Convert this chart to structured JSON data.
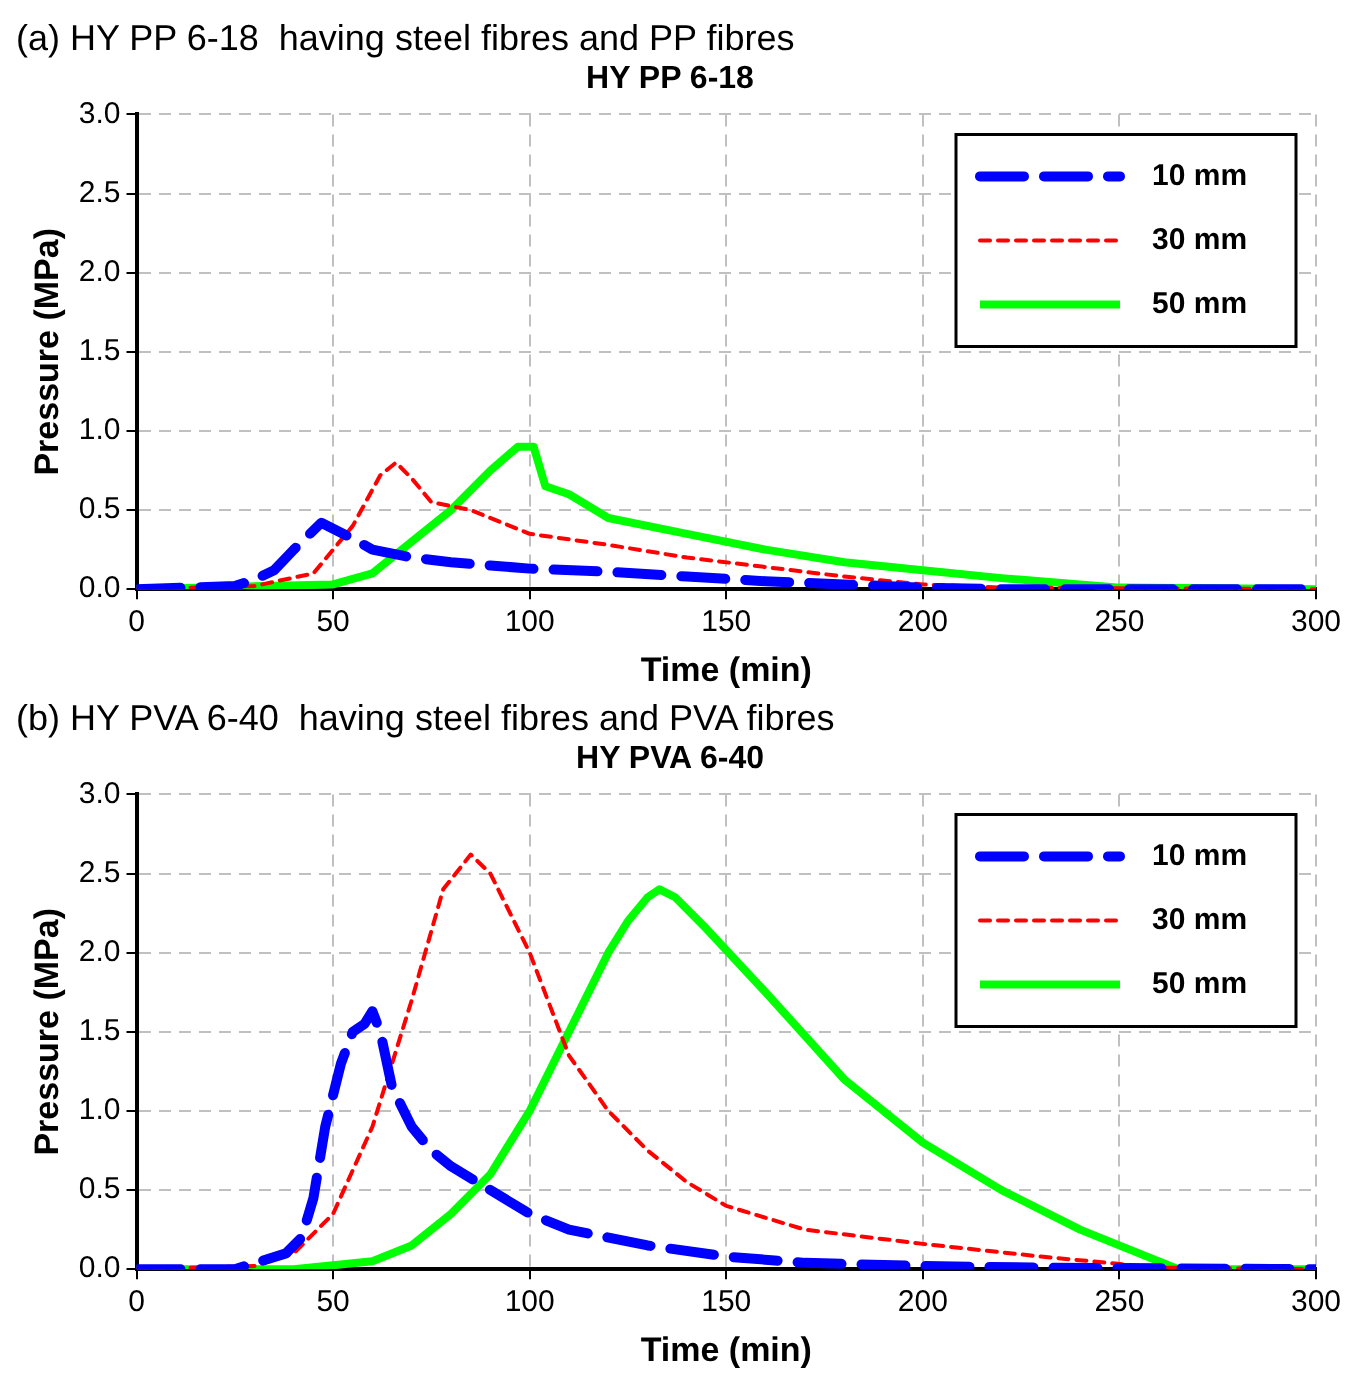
{
  "chart_data": [
    {
      "type": "line",
      "annotations": [
        "(a) HY PP 6-18  having steel fibres and PP fibres"
      ],
      "title": "HY PP 6-18",
      "xlabel": "Time (min)",
      "ylabel": "Pressure (MPa)",
      "xlim": [
        0,
        300
      ],
      "xticks": [
        0,
        50,
        100,
        150,
        200,
        250,
        300
      ],
      "ylim": [
        0,
        3
      ],
      "yticks": [
        {
          "value": 0,
          "label": "0.0"
        },
        {
          "value": 0.5,
          "label": "0.5"
        },
        {
          "value": 1,
          "label": "1.0"
        },
        {
          "value": 1.5,
          "label": "1.5"
        },
        {
          "value": 2,
          "label": "2.0"
        },
        {
          "value": 2.5,
          "label": "2.5"
        },
        {
          "value": 3,
          "label": "3.0"
        }
      ],
      "grid": true,
      "legend": "top right",
      "series": [
        {
          "name": "10 mm",
          "color": "#0000ff",
          "line_style": "dashed",
          "x": [
            0,
            25,
            30,
            35,
            40,
            47,
            55,
            60,
            70,
            80,
            90,
            100,
            120,
            140,
            160,
            180,
            200,
            220,
            300
          ],
          "values": [
            0,
            0.02,
            0.06,
            0.12,
            0.25,
            0.42,
            0.32,
            0.25,
            0.2,
            0.17,
            0.15,
            0.13,
            0.11,
            0.08,
            0.05,
            0.03,
            0.01,
            0,
            0
          ]
        },
        {
          "name": "30 mm",
          "color": "#ff0000",
          "line_style": "dotted",
          "x": [
            0,
            30,
            45,
            55,
            62,
            66,
            70,
            75,
            85,
            100,
            120,
            140,
            160,
            180,
            200,
            220,
            300
          ],
          "values": [
            0,
            0.02,
            0.1,
            0.4,
            0.72,
            0.8,
            0.7,
            0.55,
            0.5,
            0.35,
            0.28,
            0.2,
            0.14,
            0.08,
            0.03,
            0.01,
            0
          ]
        },
        {
          "name": "50 mm",
          "color": "#00ff00",
          "line_style": "solid",
          "x": [
            0,
            50,
            60,
            70,
            80,
            90,
            97,
            101,
            104,
            110,
            120,
            140,
            160,
            180,
            200,
            220,
            250,
            300
          ],
          "values": [
            0,
            0.03,
            0.1,
            0.3,
            0.5,
            0.75,
            0.9,
            0.9,
            0.65,
            0.6,
            0.45,
            0.35,
            0.25,
            0.17,
            0.12,
            0.07,
            0.01,
            0
          ]
        }
      ]
    },
    {
      "type": "line",
      "annotations": [
        "(b) HY PVA 6-40  having steel fibres and PVA fibres"
      ],
      "title": "HY PVA 6-40",
      "xlabel": "Time (min)",
      "ylabel": "Pressure (MPa)",
      "xlim": [
        0,
        300
      ],
      "xticks": [
        0,
        50,
        100,
        150,
        200,
        250,
        300
      ],
      "ylim": [
        0,
        3
      ],
      "yticks": [
        {
          "value": 0,
          "label": "0.0"
        },
        {
          "value": 0.5,
          "label": "0.5"
        },
        {
          "value": 1,
          "label": "1.0"
        },
        {
          "value": 1.5,
          "label": "1.5"
        },
        {
          "value": 2,
          "label": "2.0"
        },
        {
          "value": 2.5,
          "label": "2.5"
        },
        {
          "value": 3,
          "label": "3.0"
        }
      ],
      "grid": true,
      "legend": "top right",
      "series": [
        {
          "name": "10 mm",
          "color": "#0000ff",
          "line_style": "dashed",
          "x": [
            0,
            25,
            38,
            42,
            45,
            48,
            52,
            55,
            58,
            60,
            62,
            65,
            70,
            75,
            80,
            90,
            100,
            110,
            130,
            150,
            170,
            200,
            230,
            300
          ],
          "values": [
            0,
            0,
            0.1,
            0.2,
            0.45,
            0.9,
            1.3,
            1.5,
            1.55,
            1.63,
            1.5,
            1.15,
            0.9,
            0.75,
            0.65,
            0.5,
            0.35,
            0.25,
            0.15,
            0.08,
            0.04,
            0.02,
            0.01,
            0
          ]
        },
        {
          "name": "30 mm",
          "color": "#ff0000",
          "line_style": "dotted",
          "x": [
            0,
            30,
            40,
            50,
            60,
            70,
            78,
            85,
            90,
            100,
            110,
            120,
            130,
            140,
            150,
            170,
            200,
            230,
            260,
            300
          ],
          "values": [
            0,
            0.02,
            0.1,
            0.35,
            0.9,
            1.7,
            2.4,
            2.62,
            2.5,
            2,
            1.35,
            1,
            0.75,
            0.55,
            0.4,
            0.25,
            0.16,
            0.08,
            0.01,
            0
          ]
        },
        {
          "name": "50 mm",
          "color": "#00ff00",
          "line_style": "solid",
          "x": [
            0,
            40,
            60,
            70,
            80,
            90,
            100,
            110,
            120,
            125,
            130,
            133,
            137,
            145,
            160,
            180,
            200,
            220,
            240,
            255,
            265,
            300
          ],
          "values": [
            0,
            0,
            0.05,
            0.15,
            0.35,
            0.6,
            1,
            1.5,
            2,
            2.2,
            2.35,
            2.4,
            2.35,
            2.15,
            1.75,
            1.2,
            0.8,
            0.5,
            0.25,
            0.1,
            0,
            0
          ]
        }
      ]
    }
  ]
}
